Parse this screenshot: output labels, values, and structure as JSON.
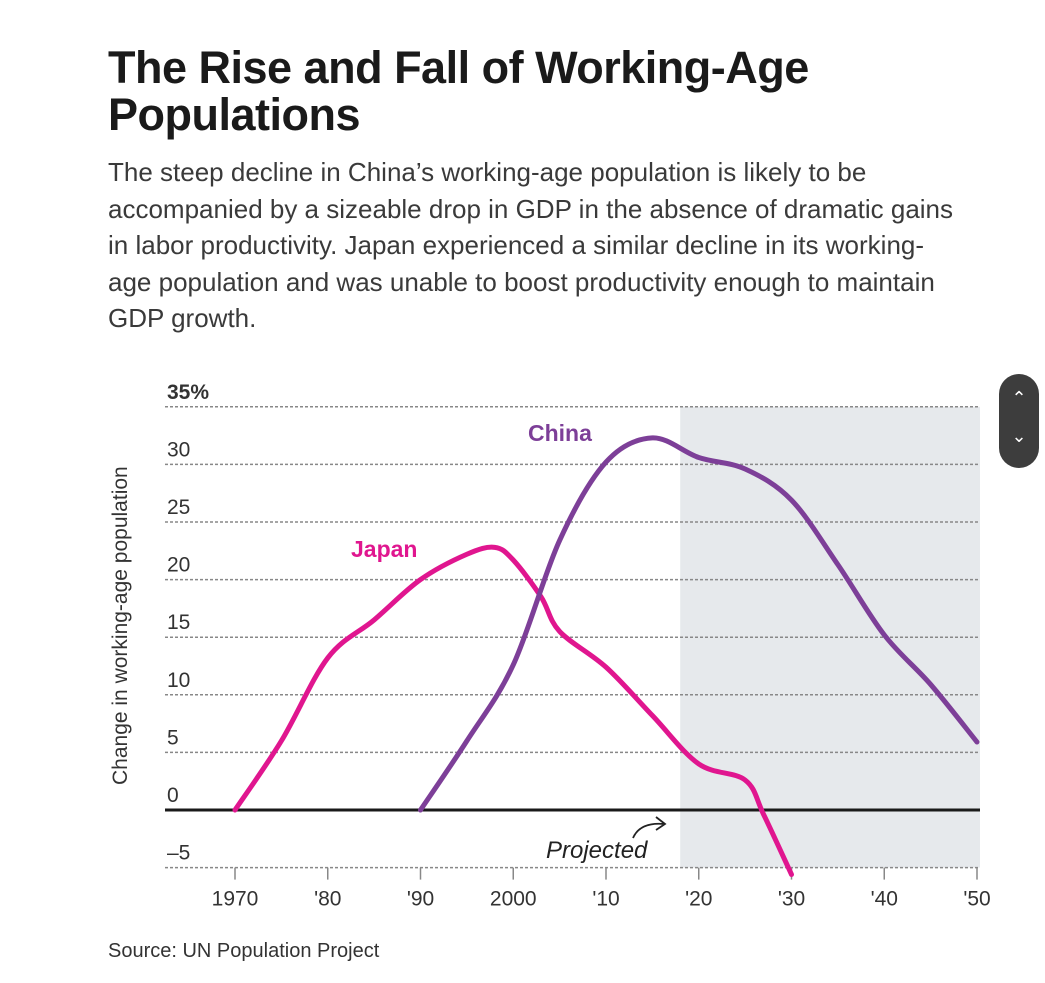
{
  "title": "The Rise and Fall of Working-Age Populations",
  "subtitle": "The steep decline in China’s working-age population is likely to be accompanied by a sizeable drop in GDP in the absence of dramatic gains in labor productivity. Japan experienced a similar decline in its working-age population and was unable to boost productivity enough to maintain GDP growth.",
  "source": "Source: UN Population Project",
  "scroller": {
    "up_icon": "chevron-up-icon",
    "down_icon": "chevron-down-icon",
    "up": "⌃",
    "down": "⌄"
  },
  "chart_data": {
    "type": "line",
    "ylabel": "Change in working-age population",
    "ylim": [
      -5,
      35
    ],
    "xlim": [
      1970,
      2050
    ],
    "y_ticks": [
      {
        "v": 35,
        "label": "35%"
      },
      {
        "v": 30,
        "label": "30"
      },
      {
        "v": 25,
        "label": "25"
      },
      {
        "v": 20,
        "label": "20"
      },
      {
        "v": 15,
        "label": "15"
      },
      {
        "v": 10,
        "label": "10"
      },
      {
        "v": 5,
        "label": "5"
      },
      {
        "v": 0,
        "label": "0"
      },
      {
        "v": -5,
        "label": "–5"
      }
    ],
    "x_ticks": [
      {
        "v": 1970,
        "label": "1970"
      },
      {
        "v": 1980,
        "label": "'80"
      },
      {
        "v": 1990,
        "label": "'90"
      },
      {
        "v": 2000,
        "label": "2000"
      },
      {
        "v": 2010,
        "label": "'10"
      },
      {
        "v": 2020,
        "label": "'20"
      },
      {
        "v": 2030,
        "label": "'30"
      },
      {
        "v": 2040,
        "label": "'40"
      },
      {
        "v": 2050,
        "label": "'50"
      }
    ],
    "grid": true,
    "projected_from": 2018,
    "projected_label": "Projected",
    "series": [
      {
        "name": "Japan",
        "color": "#e0168f",
        "x": [
          1970,
          1975,
          1980,
          1985,
          1990,
          1995,
          1998,
          2000,
          2003,
          2005,
          2010,
          2015,
          2020,
          2025,
          2027,
          2030
        ],
        "y": [
          0,
          6,
          13.2,
          16.5,
          20,
          22.2,
          22.8,
          21.7,
          18.5,
          15.5,
          12.4,
          8.2,
          4,
          2.6,
          -0.4,
          -5.6
        ]
      },
      {
        "name": "China",
        "color": "#7d3f98",
        "x": [
          1990,
          1995,
          2000,
          2005,
          2010,
          2015,
          2020,
          2025,
          2030,
          2035,
          2040,
          2045,
          2050
        ],
        "y": [
          0,
          6,
          12.6,
          23.4,
          30.2,
          32.3,
          30.6,
          29.6,
          26.9,
          21.3,
          15.2,
          10.9,
          5.9
        ]
      }
    ]
  }
}
